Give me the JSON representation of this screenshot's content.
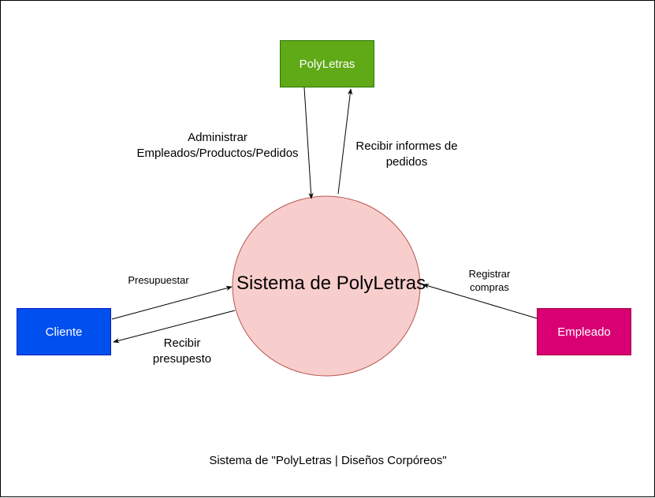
{
  "diagram": {
    "nodes": {
      "polyletras": {
        "label": "PolyLetras",
        "fill": "#60a917",
        "stroke": "#2d7600"
      },
      "cliente": {
        "label": "Cliente",
        "fill": "#0050ef",
        "stroke": "#001dbc"
      },
      "empleado": {
        "label": "Empleado",
        "fill": "#d80073",
        "stroke": "#a50040"
      },
      "sistema": {
        "label": "Sistema de PolyLetras",
        "fill": "#f8cecc",
        "stroke": "#b85450"
      }
    },
    "edges": {
      "administrar": {
        "line1": "Administrar",
        "line2": "Empleados/Productos/Pedidos"
      },
      "recibir_informes": {
        "line1": "Recibir informes de",
        "line2": "pedidos"
      },
      "presupuestar": {
        "label": "Presupuestar"
      },
      "recibir_presupuesto": {
        "line1": "Recibir",
        "line2": "presupesto"
      },
      "registrar_compras": {
        "line1": "Registrar",
        "line2": "compras"
      }
    },
    "caption": "Sistema de \"PolyLetras | Diseños Corpóreos\""
  }
}
